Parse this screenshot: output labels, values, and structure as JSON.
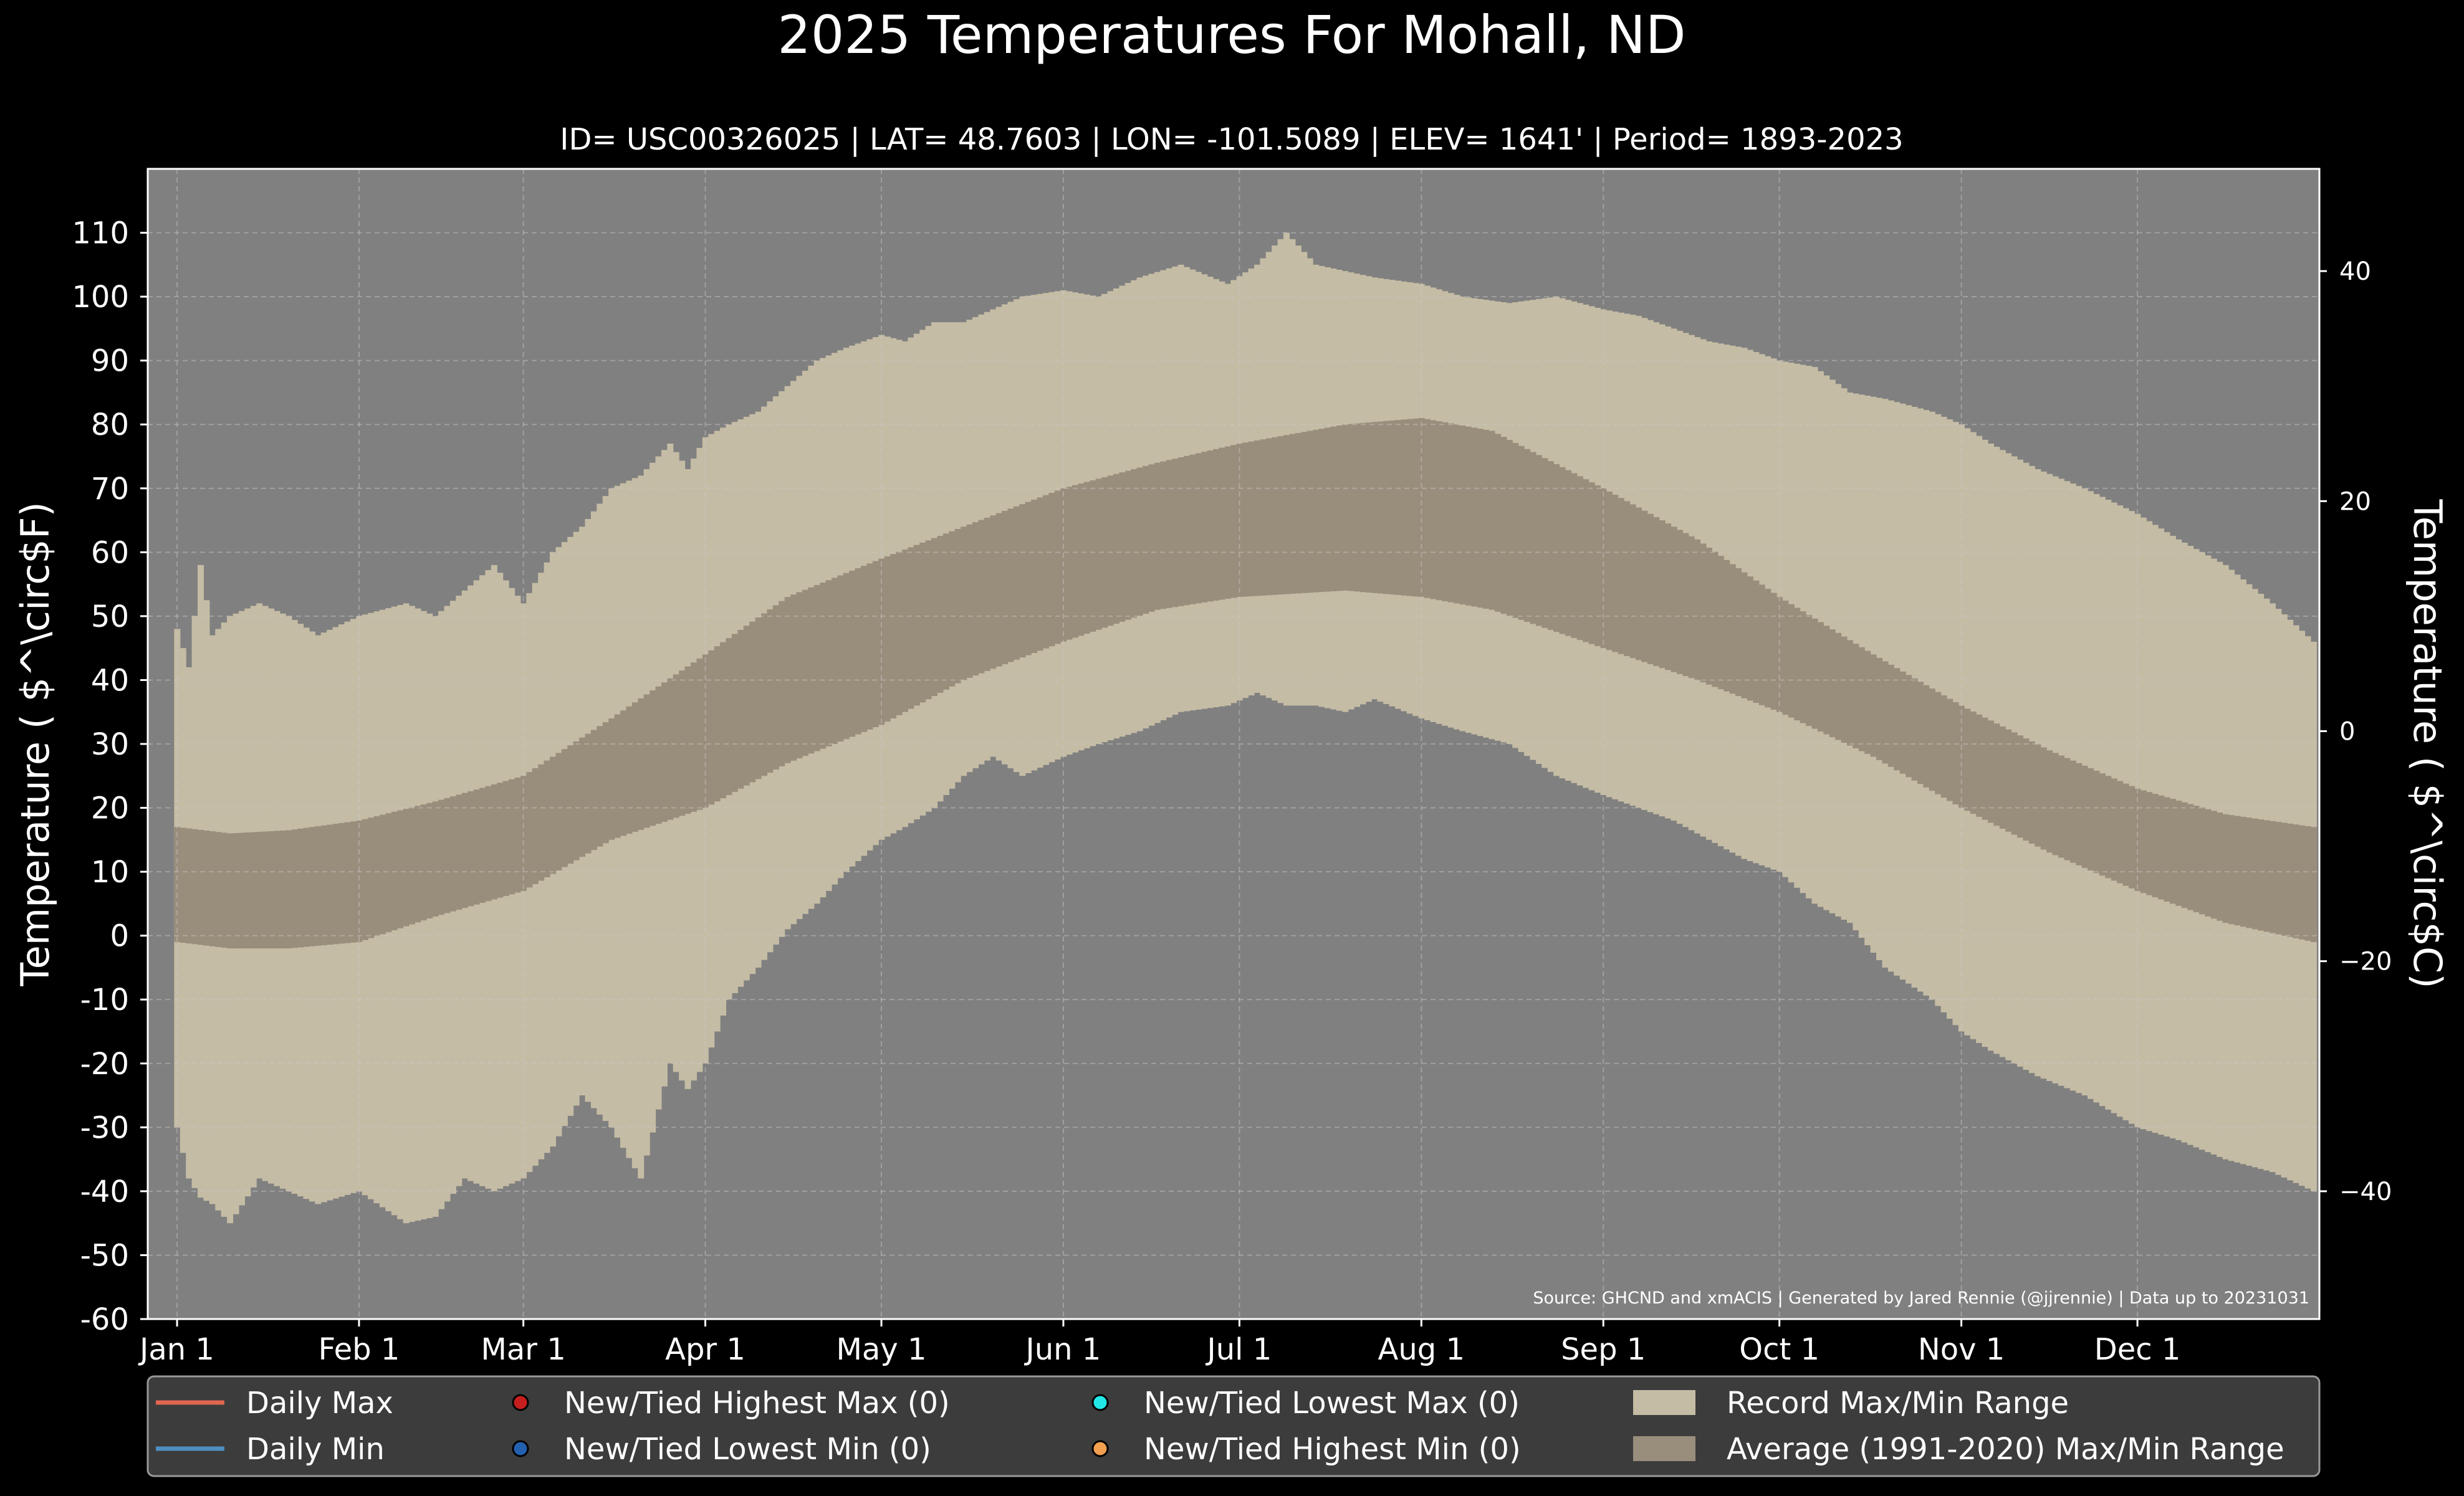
{
  "title": "2025 Temperatures For Mohall, ND",
  "subtitle": "ID= USC00326025 | LAT= 48.7603 | LON= -101.5089 | ELEV= 1641' | Period= 1893-2023",
  "source": "Source: GHCND and xmACIS | Generated by Jared Rennie (@jjrennie) | Data up to 20231031",
  "colors": {
    "background": "#000000",
    "plot_background": "#808080",
    "record_range": "#c5bca5",
    "normal_range": "#998e7c",
    "daily_max": "#e06650",
    "daily_min": "#4f8fc0",
    "highest_max_marker": "#c41e1e",
    "lowest_min_marker": "#2460b0",
    "lowest_max_marker": "#22e8e8",
    "highest_min_marker": "#f2a050",
    "legend_bg": "#3c3c3c"
  },
  "legend": [
    {
      "label": "Daily Max",
      "kind": "line",
      "color": "#e06650"
    },
    {
      "label": "Daily Min",
      "kind": "line",
      "color": "#4f8fc0"
    },
    {
      "label": "New/Tied Highest Max (0)",
      "kind": "dot",
      "color": "#c41e1e"
    },
    {
      "label": "New/Tied Lowest Min (0)",
      "kind": "dot",
      "color": "#2460b0"
    },
    {
      "label": "New/Tied Lowest Max (0)",
      "kind": "dot",
      "color": "#22e8e8"
    },
    {
      "label": "New/Tied Highest Min (0)",
      "kind": "dot",
      "color": "#f2a050"
    },
    {
      "label": "Record Max/Min Range",
      "kind": "patch",
      "color": "#c5bca5"
    },
    {
      "label": "Average (1991-2020) Max/Min Range",
      "kind": "patch",
      "color": "#998e7c"
    }
  ],
  "chart_data": {
    "type": "bar",
    "x_axis": {
      "tick_labels": [
        "Jan 1",
        "Feb 1",
        "Mar 1",
        "Apr 1",
        "May 1",
        "Jun 1",
        "Jul 1",
        "Aug 1",
        "Sep 1",
        "Oct 1",
        "Nov 1",
        "Dec 1"
      ],
      "tick_days": [
        1,
        32,
        60,
        91,
        121,
        152,
        182,
        213,
        244,
        274,
        305,
        335
      ],
      "xlim": [
        -4,
        366
      ]
    },
    "y_axis_left": {
      "label": "Temperature ( $^\\circ$F)",
      "ylim": [
        -60,
        120
      ],
      "ticks": [
        110,
        100,
        90,
        80,
        70,
        60,
        50,
        40,
        30,
        20,
        10,
        0,
        -10,
        -20,
        -30,
        -40,
        -50,
        -60
      ]
    },
    "y_axis_right": {
      "label": "Temperature ( $^\\circ$C)",
      "ticks": [
        40,
        20,
        0,
        -20,
        -40
      ]
    },
    "grid": true,
    "series": [
      {
        "name": "Record Max/Min Range",
        "key_days": [
          1,
          3,
          5,
          7,
          10,
          15,
          20,
          25,
          32,
          40,
          45,
          50,
          55,
          60,
          65,
          70,
          75,
          80,
          85,
          88,
          91,
          95,
          100,
          105,
          110,
          115,
          121,
          125,
          130,
          135,
          140,
          145,
          152,
          158,
          165,
          172,
          180,
          185,
          190,
          195,
          200,
          205,
          213,
          220,
          228,
          236,
          244,
          250,
          256,
          262,
          268,
          274,
          280,
          286,
          292,
          300,
          305,
          310,
          318,
          326,
          335,
          342,
          350,
          358,
          365
        ],
        "record_high": [
          48,
          42,
          58,
          47,
          50,
          52,
          50,
          47,
          50,
          52,
          50,
          54,
          58,
          52,
          60,
          64,
          70,
          72,
          77,
          73,
          78,
          80,
          82,
          86,
          90,
          92,
          94,
          93,
          96,
          96,
          98,
          100,
          101,
          100,
          103,
          105,
          102,
          105,
          110,
          105,
          104,
          103,
          102,
          100,
          99,
          100,
          98,
          97,
          95,
          93,
          92,
          90,
          89,
          85,
          84,
          82,
          80,
          77,
          73,
          70,
          66,
          62,
          58,
          52,
          46
        ],
        "record_low": [
          -30,
          -38,
          -41,
          -42,
          -45,
          -38,
          -40,
          -42,
          -40,
          -45,
          -44,
          -38,
          -40,
          -38,
          -33,
          -25,
          -30,
          -38,
          -20,
          -24,
          -20,
          -10,
          -5,
          1,
          5,
          10,
          15,
          17,
          20,
          25,
          28,
          25,
          28,
          30,
          32,
          35,
          36,
          38,
          36,
          36,
          35,
          37,
          34,
          32,
          30,
          25,
          22,
          20,
          18,
          15,
          12,
          10,
          5,
          2,
          -5,
          -10,
          -15,
          -18,
          -22,
          -25,
          -30,
          -32,
          -35,
          -37,
          -40
        ]
      },
      {
        "name": "Average (1991-2020) Max/Min Range",
        "key_days": [
          1,
          10,
          20,
          32,
          45,
          60,
          75,
          91,
          105,
          121,
          135,
          152,
          168,
          182,
          200,
          213,
          225,
          244,
          260,
          274,
          290,
          305,
          320,
          335,
          350,
          365
        ],
        "normal_high": [
          17,
          16,
          16.5,
          18,
          21,
          25,
          34,
          44,
          53,
          59,
          64,
          70,
          74,
          77,
          80,
          81,
          79,
          70,
          62,
          53,
          44,
          36,
          29,
          23,
          19,
          17
        ],
        "normal_low": [
          -1,
          -2,
          -2,
          -1,
          3,
          7,
          15,
          20,
          27,
          33,
          40,
          46,
          51,
          53,
          54,
          53,
          51,
          45,
          40,
          35,
          28,
          20,
          13,
          7,
          2,
          -1
        ]
      }
    ],
    "daily_max_count": 0,
    "daily_min_count": 0,
    "annotations": [
      "Source: GHCND and xmACIS | Generated by Jared Rennie (@jjrennie) | Data up to 20231031"
    ]
  }
}
